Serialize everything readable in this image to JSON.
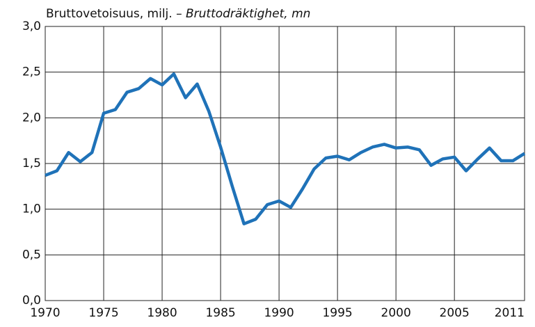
{
  "chart_data": {
    "type": "line",
    "title": [
      "Bruttovetoisuus, milj. –",
      "Bruttodräktighet, mn"
    ],
    "x": [
      1970,
      1971,
      1972,
      1973,
      1974,
      1975,
      1976,
      1977,
      1978,
      1979,
      1980,
      1981,
      1982,
      1983,
      1984,
      1985,
      1986,
      1987,
      1988,
      1989,
      1990,
      1991,
      1992,
      1993,
      1994,
      1995,
      1996,
      1997,
      1998,
      1999,
      2000,
      2001,
      2002,
      2003,
      2004,
      2005,
      2006,
      2007,
      2008,
      2009,
      2010,
      2011
    ],
    "series": [
      {
        "name": "Bruttovetoisuus",
        "color": "#1f72b8",
        "values": [
          1.37,
          1.42,
          1.62,
          1.52,
          1.62,
          2.05,
          2.09,
          2.28,
          2.32,
          2.43,
          2.36,
          2.48,
          2.22,
          2.37,
          2.07,
          1.68,
          1.25,
          0.84,
          0.89,
          1.05,
          1.09,
          1.02,
          1.22,
          1.44,
          1.56,
          1.58,
          1.54,
          1.62,
          1.68,
          1.71,
          1.67,
          1.68,
          1.65,
          1.48,
          1.55,
          1.57,
          1.42,
          1.55,
          1.67,
          1.53,
          1.53,
          1.61
        ]
      }
    ],
    "xlim": [
      1970,
      2011
    ],
    "xticks": [
      1970,
      1975,
      1980,
      1985,
      1990,
      1995,
      2000,
      2005,
      2011
    ],
    "ylim": [
      0,
      3
    ],
    "yticks": [
      {
        "value": 0,
        "label": "0,0"
      },
      {
        "value": 0.5,
        "label": "0,5"
      },
      {
        "value": 1,
        "label": "1,0"
      },
      {
        "value": 1.5,
        "label": "1,5"
      },
      {
        "value": 2,
        "label": "2,0"
      },
      {
        "value": 2.5,
        "label": "2,5"
      },
      {
        "value": 3,
        "label": "3,0"
      }
    ],
    "grid": true
  }
}
